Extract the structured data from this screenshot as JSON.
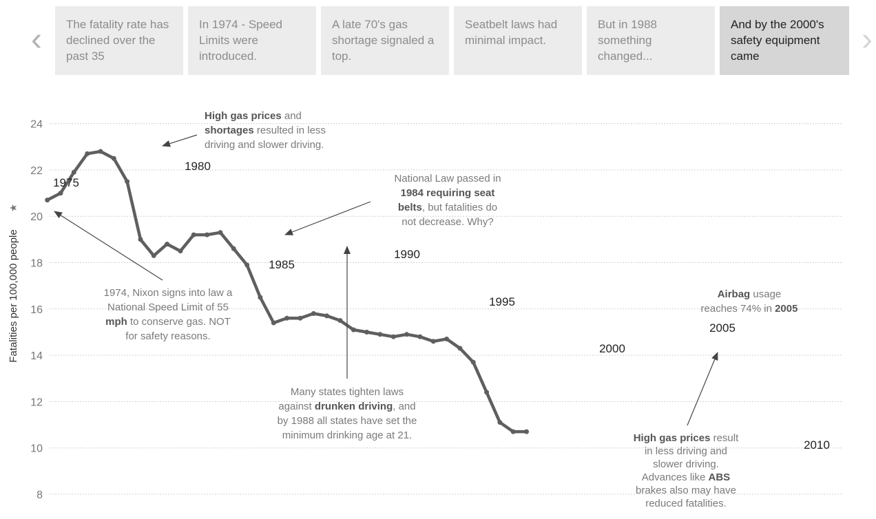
{
  "nav": {
    "prev_icon": "chevron-left-icon",
    "next_icon": "chevron-right-icon"
  },
  "story_points": [
    {
      "label": "The fatality rate has declined over the past 35",
      "active": false
    },
    {
      "label": "In 1974 - Speed Limits were introduced.",
      "active": false
    },
    {
      "label": "A late 70's gas shortage signaled a top.",
      "active": false
    },
    {
      "label": "Seatbelt laws had minimal impact.",
      "active": false
    },
    {
      "label": "But in 1988 something changed...",
      "active": false
    },
    {
      "label": "And by the 2000's safety equipment came",
      "active": true
    }
  ],
  "chart_data": {
    "type": "line",
    "ylabel": "Fatalities per 100,000 people",
    "ylim": [
      8,
      24
    ],
    "yticks": [
      8,
      10,
      12,
      14,
      16,
      18,
      20,
      22,
      24
    ],
    "grid": true,
    "colors": {
      "line": "#5f5f5f",
      "grid": "#d0d0d0"
    },
    "series": [
      {
        "x": [
          1974,
          1975,
          1976,
          1977,
          1978,
          1979,
          1980,
          1981,
          1982,
          1983,
          1984,
          1985,
          1986,
          1987,
          1988,
          1989,
          1990,
          1991,
          1992,
          1993,
          1994,
          1995,
          1996,
          1997,
          1998,
          1999,
          2000,
          2001,
          2002,
          2003,
          2004,
          2005,
          2006,
          2007,
          2008,
          2009,
          2010
        ],
        "values": [
          20.7,
          21.0,
          21.9,
          22.7,
          22.8,
          22.5,
          21.5,
          19.0,
          18.3,
          18.8,
          18.5,
          19.2,
          19.2,
          19.3,
          18.6,
          17.9,
          16.5,
          15.4,
          15.6,
          15.6,
          15.8,
          15.7,
          15.5,
          15.1,
          15.0,
          14.9,
          14.8,
          14.9,
          14.8,
          14.6,
          14.7,
          14.3,
          13.7,
          12.4,
          11.1,
          10.7,
          10.7
        ]
      }
    ],
    "year_labels": [
      "1975",
      "1980",
      "1985",
      "1990",
      "1995",
      "2000",
      "2005",
      "2010"
    ],
    "annotations": [
      {
        "lines": [
          [
            {
              "t": "High gas prices",
              "b": true
            },
            {
              "t": " and"
            }
          ],
          [
            {
              "t": "shortages",
              "b": true
            },
            {
              "t": " resulted in less"
            }
          ],
          [
            {
              "t": "driving and slower driving."
            }
          ]
        ]
      },
      {
        "lines": [
          [
            {
              "t": "National Law passed in"
            }
          ],
          [
            {
              "t": "1984 requiring seat",
              "b": true
            }
          ],
          [
            {
              "t": "belts",
              "b": true
            },
            {
              "t": ", but fatalities do"
            }
          ],
          [
            {
              "t": "not decrease.  Why?"
            }
          ]
        ]
      },
      {
        "lines": [
          [
            {
              "t": "1974, Nixon signs into law a"
            }
          ],
          [
            {
              "t": "National Speed Limit of 55"
            }
          ],
          [
            {
              "t": "mph",
              "b": true
            },
            {
              "t": " to conserve gas.  NOT"
            }
          ],
          [
            {
              "t": "for safety reasons."
            }
          ]
        ]
      },
      {
        "lines": [
          [
            {
              "t": "Many states tighten laws"
            }
          ],
          [
            {
              "t": "against "
            },
            {
              "t": "drunken driving",
              "b": true
            },
            {
              "t": ", and"
            }
          ],
          [
            {
              "t": "by 1988 all states have set the"
            }
          ],
          [
            {
              "t": "minimum drinking age at 21."
            }
          ]
        ]
      },
      {
        "lines": [
          [
            {
              "t": "Airbag",
              "b": true
            },
            {
              "t": " usage"
            }
          ],
          [
            {
              "t": "reaches 74% in "
            },
            {
              "t": "2005",
              "b": true
            }
          ]
        ]
      },
      {
        "lines": [
          [
            {
              "t": "High gas prices",
              "b": true
            },
            {
              "t": " result"
            }
          ],
          [
            {
              "t": "in less driving and"
            }
          ],
          [
            {
              "t": "slower driving."
            }
          ],
          [
            {
              "t": "Advances like "
            },
            {
              "t": "ABS",
              "b": true
            }
          ],
          [
            {
              "t": "brakes also may have"
            }
          ],
          [
            {
              "t": "reduced fatalities."
            }
          ]
        ]
      }
    ]
  }
}
